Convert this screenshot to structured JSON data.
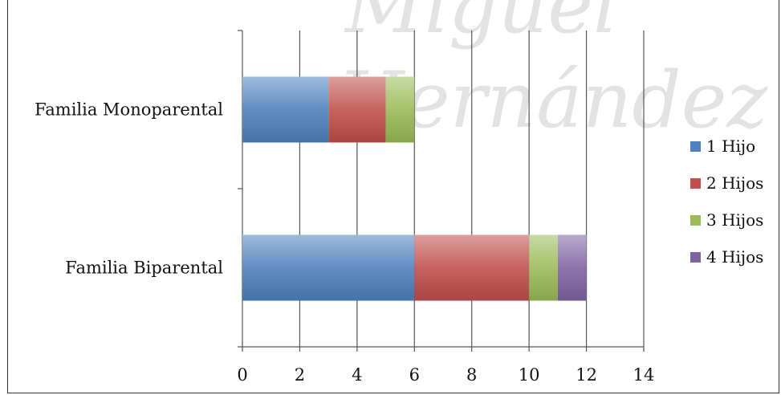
{
  "watermark": {
    "line1": "Miguel",
    "line2": "Hernández"
  },
  "chart_data": {
    "type": "bar",
    "orientation": "horizontal",
    "stacked": true,
    "categories": [
      "Familia Biparental",
      "Familia Monoparental"
    ],
    "series": [
      {
        "name": "1 Hijo",
        "values": [
          6,
          3
        ],
        "color": "#4f81bd"
      },
      {
        "name": "2 Hijos",
        "values": [
          4,
          2
        ],
        "color": "#c0504d"
      },
      {
        "name": "3 Hijos",
        "values": [
          1,
          1
        ],
        "color": "#9bbb59"
      },
      {
        "name": "4 Hijos",
        "values": [
          1,
          0
        ],
        "color": "#8064a2"
      }
    ],
    "xlim": [
      0,
      14
    ],
    "x_ticks": [
      "0",
      "2",
      "4",
      "6",
      "8",
      "10",
      "12",
      "14"
    ],
    "xlabel": "",
    "ylabel": "",
    "title": "",
    "grid": true,
    "legend_position": "right"
  }
}
